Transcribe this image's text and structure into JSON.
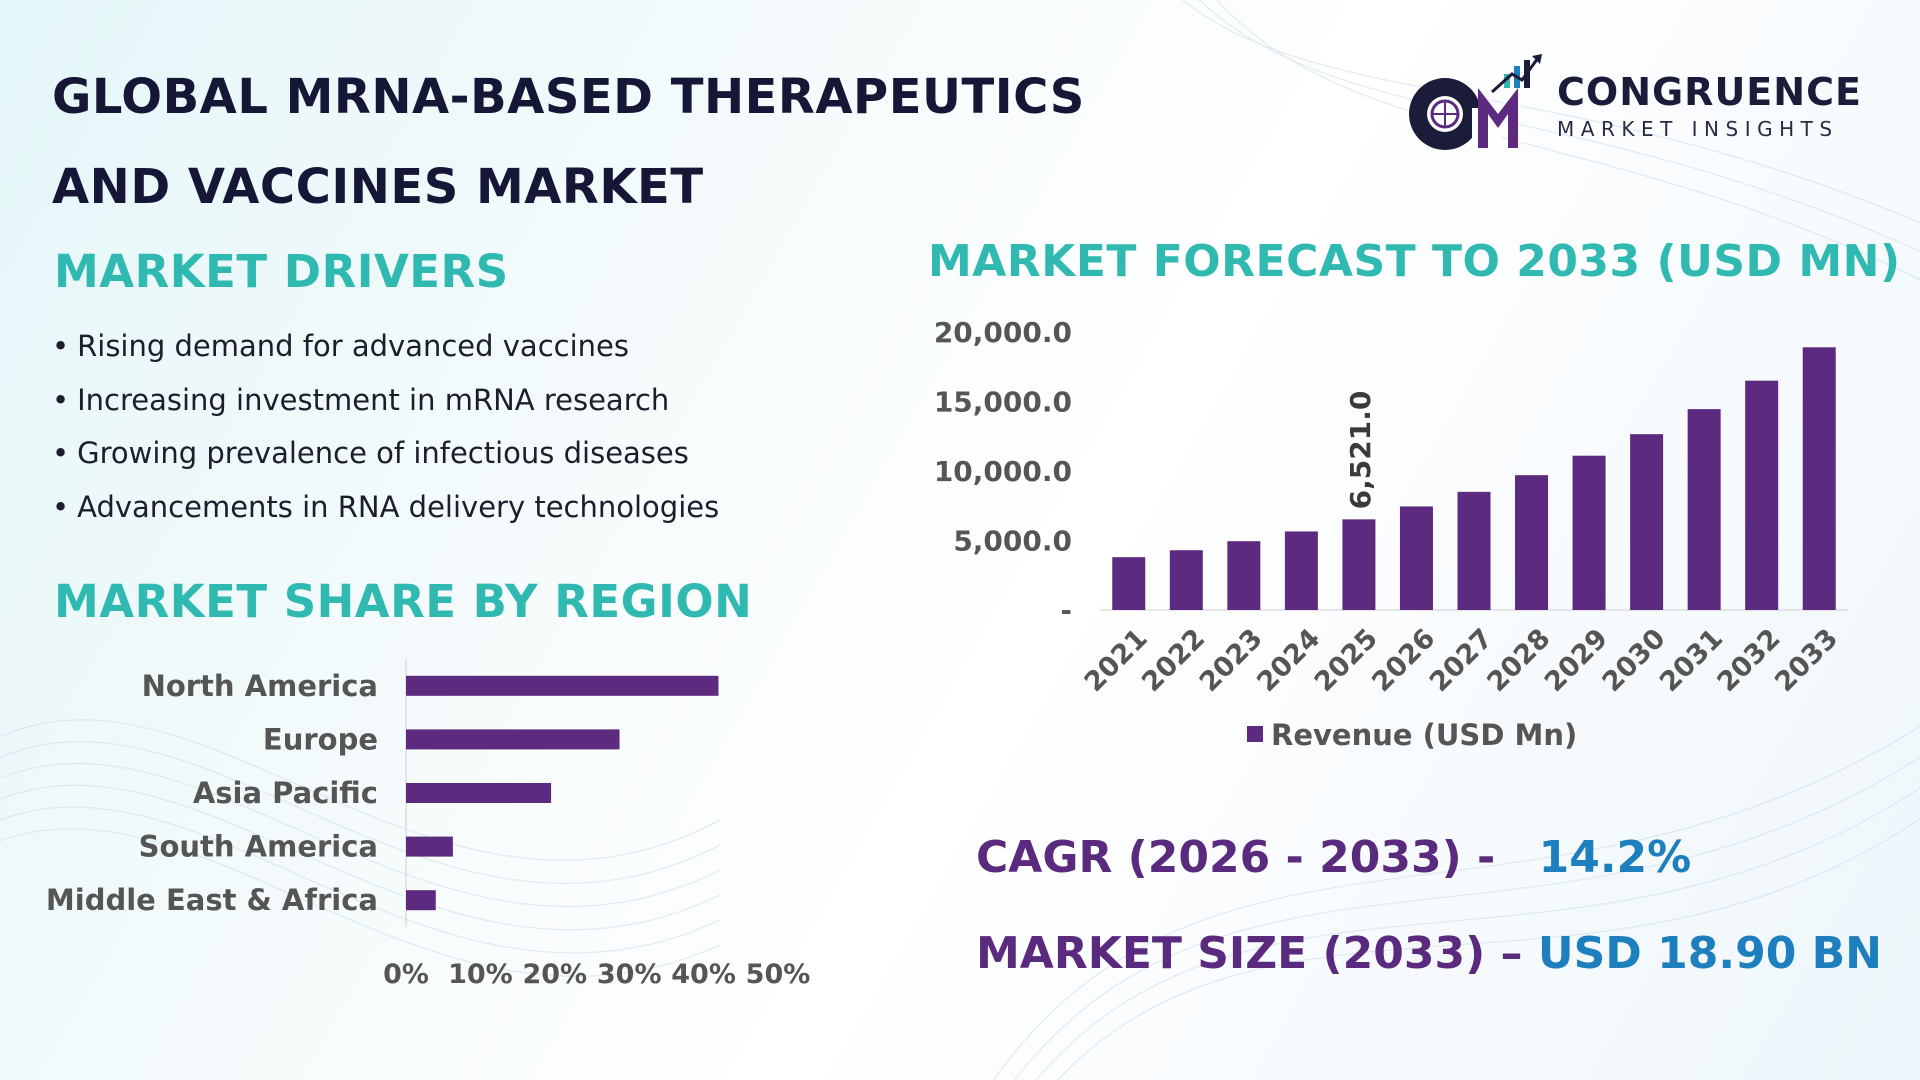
{
  "title_line1": "GLOBAL MRNA-BASED THERAPEUTICS",
  "title_line2": "AND VACCINES MARKET",
  "logo": {
    "name": "CONGRUENCE",
    "subtitle": "MARKET INSIGHTS",
    "monogram": "CM"
  },
  "drivers": {
    "heading": "MARKET DRIVERS",
    "bullet": "•",
    "items": [
      "Rising demand for advanced vaccines",
      "Increasing investment in mRNA research",
      "Growing prevalence of infectious diseases",
      "Advancements in RNA delivery technologies"
    ]
  },
  "region_share": {
    "heading": "MARKET SHARE BY REGION"
  },
  "forecast": {
    "heading": "MARKET FORECAST TO 2033 (USD MN)"
  },
  "kpis": {
    "cagr_label": "CAGR (2026 - 2033) -",
    "cagr_value": "14.2%",
    "size_label": "MARKET SIZE (2033) –",
    "size_value": "USD 18.90 BN"
  },
  "colors": {
    "bar": "#5c2a7e",
    "teal_heading": "#2fb9b1",
    "title": "#161636",
    "kpi_value": "#1d7fbd",
    "kpi_label": "#5a2a7e"
  },
  "chart_data": [
    {
      "type": "bar",
      "orientation": "horizontal",
      "categories": [
        "North America",
        "Europe",
        "Asia Pacific",
        "South America",
        "Middle East & Africa"
      ],
      "values": [
        42,
        28.7,
        19.5,
        6.3,
        4
      ],
      "value_unit": "%",
      "xlim": [
        0,
        50
      ],
      "x_ticks": [
        "0%",
        "10%",
        "20%",
        "30%",
        "40%",
        "50%"
      ],
      "grid": false,
      "legend": "none"
    },
    {
      "type": "bar",
      "orientation": "vertical",
      "categories": [
        "2021",
        "2022",
        "2023",
        "2024",
        "2025",
        "2026",
        "2027",
        "2028",
        "2029",
        "2030",
        "2031",
        "2032",
        "2033"
      ],
      "series": [
        {
          "name": "Revenue (USD Mn)",
          "values": [
            3800,
            4300,
            4950,
            5650,
            6521,
            7450,
            8500,
            9700,
            11100,
            12650,
            14450,
            16500,
            18900
          ]
        }
      ],
      "ylim": [
        0,
        20000
      ],
      "y_ticks": [
        "-",
        "5,000.0",
        "10,000.0",
        "15,000.0",
        "20,000.0"
      ],
      "data_labels": [
        {
          "category": "2025",
          "text": "6,521.0"
        }
      ],
      "grid": false,
      "legend": "bottom"
    }
  ]
}
